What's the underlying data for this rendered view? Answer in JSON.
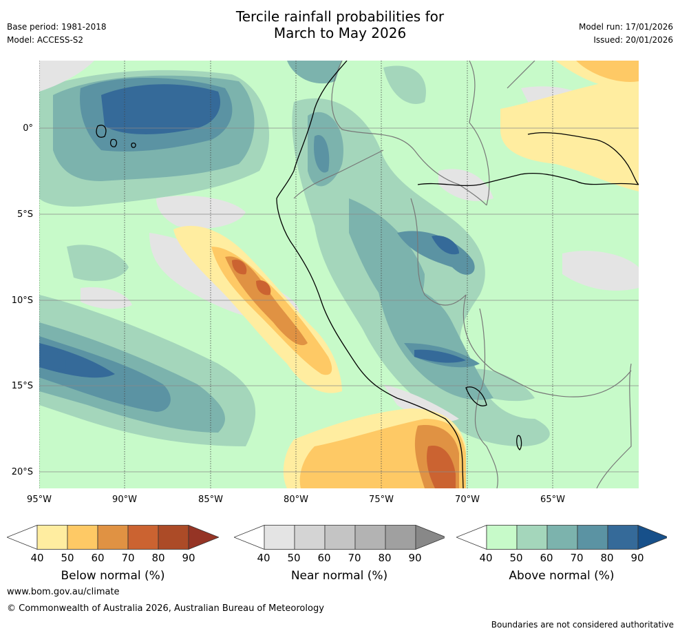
{
  "header": {
    "title_line1": "Tercile rainfall probabilities for",
    "title_line2": "March to May 2026",
    "base_period": "Base period: 1981-2018",
    "model": "Model: ACCESS-S2",
    "model_run": "Model run: 17/01/2026",
    "issued": "Issued: 20/01/2026"
  },
  "map": {
    "lat_labels": [
      "0°",
      "5°S",
      "10°S",
      "15°S",
      "20°S"
    ],
    "lon_labels": [
      "95°W",
      "90°W",
      "85°W",
      "80°W",
      "75°W",
      "70°W",
      "65°W"
    ]
  },
  "colorbars": [
    {
      "label": "Below normal (%)",
      "ticks": [
        "40",
        "50",
        "60",
        "70",
        "80",
        "90"
      ],
      "colors": [
        "#ffffff",
        "#ffeda0",
        "#fec965",
        "#e09243",
        "#cb6331",
        "#ac4b27",
        "#953425"
      ]
    },
    {
      "label": "Near normal (%)",
      "ticks": [
        "40",
        "50",
        "60",
        "70",
        "80",
        "90"
      ],
      "colors": [
        "#ffffff",
        "#e4e4e4",
        "#d4d4d4",
        "#c4c4c4",
        "#b3b3b3",
        "#a0a0a0",
        "#888888"
      ]
    },
    {
      "label": "Above normal (%)",
      "ticks": [
        "40",
        "50",
        "60",
        "70",
        "80",
        "90"
      ],
      "colors": [
        "#ffffff",
        "#c7fac9",
        "#a4d6bb",
        "#7cb3ad",
        "#5b93a3",
        "#356a99",
        "#17508a"
      ]
    }
  ],
  "footer": {
    "website": "www.bom.gov.au/climate",
    "copyright": "© Commonwealth of Australia 2026, Australian Bureau of Meteorology",
    "disclaimer": "Boundaries are not considered authoritative"
  },
  "palette": {
    "above_50": "#c7fac9",
    "above_60": "#a4d6bb",
    "above_70": "#7cb3ad",
    "above_80": "#5b93a3",
    "above_90": "#356a99",
    "below_50": "#ffeda0",
    "below_60": "#fec965",
    "below_70": "#e09243",
    "below_80": "#cb6331",
    "near_50": "#e4e4e4"
  }
}
